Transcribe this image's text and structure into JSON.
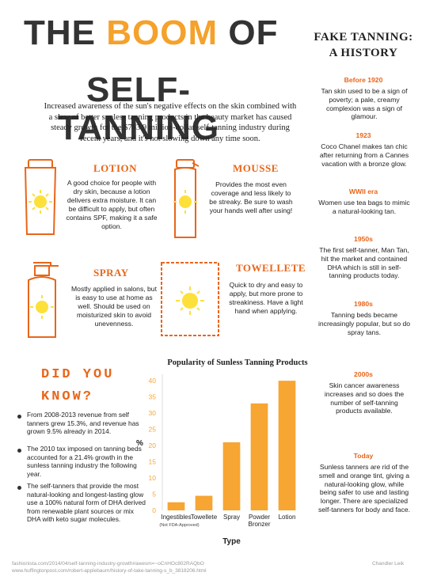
{
  "title": {
    "line1_pre": "THE ",
    "line1_accent": "BOOM",
    "line1_post": " OF",
    "line2": "SELF-TANNING"
  },
  "intro": "Increased awareness of the sun's negative effects on the skin combined with a slew of better sunless tanning products in the beauty market has caused steady growth for the $763.9 million-dollar self-tanning industry during recent years, and it's not slowing down any time soon.",
  "products": {
    "lotion": {
      "title": "LOTION",
      "body": "A good choice for people with dry skin, because a lotion delivers extra moisture. It can be difficult to apply, but often contains SPF, making it a safe option."
    },
    "mousse": {
      "title": "MOUSSE",
      "body": "Provides the most even coverage and less likely to be streaky. Be sure to wash your hands well after using!"
    },
    "spray": {
      "title": "SPRAY",
      "body": "Mostly applied in salons, but is easy to use at home as well. Should be used on moisturized skin to avoid unevenness."
    },
    "towelette": {
      "title": "TOWELLETE",
      "body": "Quick to dry and easy to apply, but more prone to streakiness. Have a light hand when applying."
    }
  },
  "dyk": {
    "title": "DID YOU KNOW?",
    "facts": [
      "From 2008-2013 revenue from self tanners grew 15.3%, and revenue has grown 9.5% already in 2014.",
      "The 2010 tax imposed on tanning beds accounted for a 21.4% growth in the sunless tanning industry the following year.",
      "The self-tanners that provide the most natural-looking and longest-lasting glow use a 100% natural form of DHA derived from renewable plant sources or mix DHA with keto sugar molecules."
    ]
  },
  "history": {
    "title_line1": "FAKE TANNING:",
    "title_line2": "A HISTORY",
    "eras": [
      {
        "era": "Before 1920",
        "text": "Tan skin used to be a sign of poverty; a pale, creamy complexion was a sign of glamour."
      },
      {
        "era": "1923",
        "text": "Coco Chanel makes tan chic after returning from a Cannes vacation with a bronze glow."
      },
      {
        "era": "WWII era",
        "text": "Women use tea bags to mimic a natural-looking tan."
      },
      {
        "era": "1950s",
        "text": "The first self-tanner, Man Tan, hit the market and contained DHA which is still in self-tanning products today."
      },
      {
        "era": "1980s",
        "text": "Tanning beds became increasingly popular, but so do spray tans."
      },
      {
        "era": "2000s",
        "text": "Skin cancer awareness increases and so does the number of self-tanning products available."
      },
      {
        "era": "Today",
        "text": "Sunless tanners are rid of the smell and orange tint, giving a natural-looking glow, while being safer to use and lasting longer. There are specialized self-tanners for body and face."
      }
    ]
  },
  "chart_data": {
    "type": "bar",
    "title": "Popularity of Sunless Tanning Products",
    "xlabel": "Type",
    "ylabel": "%",
    "categories": [
      "Ingestibles",
      "Towellete",
      "Spray",
      "Powder Bronzer",
      "Lotion"
    ],
    "category_notes": [
      "(Not FDA-Approved)",
      "",
      "",
      "",
      ""
    ],
    "values": [
      2.5,
      4.5,
      21,
      33,
      40
    ],
    "yticks": [
      0,
      5,
      10,
      15,
      20,
      25,
      30,
      35,
      40
    ],
    "ylim": [
      0,
      42
    ],
    "bar_color": "#f7a533",
    "grid": false
  },
  "footer": {
    "source1": "fashionista.com/2014/04/self-tanning-industry-growth#awesm=~oCnHOc802RAQbO",
    "source2": "www.huffingtonpost.com/robert-applebaum/history-of-take-tanning-s_b_3818206.html",
    "author": "Chandler Leik"
  },
  "colors": {
    "accent": "#e8661a",
    "boom": "#f5a12b",
    "bar": "#f7a533",
    "sun": "#fde03a"
  }
}
